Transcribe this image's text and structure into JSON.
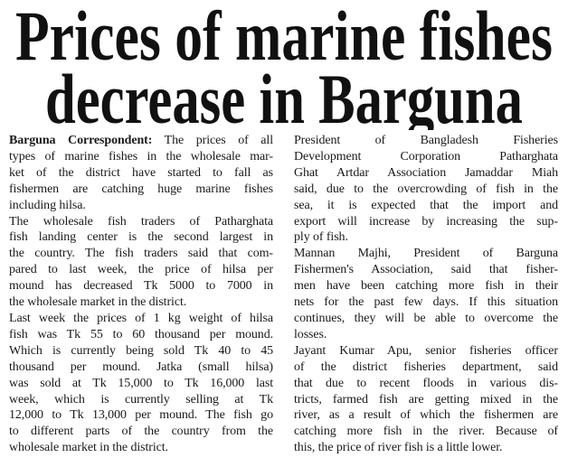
{
  "headline": [
    "Prices of marine fishes",
    "decrease in Barguna"
  ],
  "byline": "Barguna Correspondent:",
  "columns": [
    [
      [
        "The prices of all",
        "types of marine fishes in the wholesale mar-",
        "ket of the district have started to fall as",
        "fishermen are catching huge marine fishes",
        "including hilsa."
      ],
      [
        "The wholesale fish traders of Patharghata",
        "fish landing center is the second largest in",
        "the country. The fish traders said that com-",
        "pared to last week, the price of hilsa per",
        "mound has decreased Tk 5000 to 7000 in",
        "the wholesale market in the district."
      ],
      [
        "Last week the prices of 1 kg weight of hilsa",
        "fish was Tk 55 to 60 thousand per mound.",
        "Which is currently being sold Tk 40 to 45",
        "thousand per mound. Jatka (small hilsa)",
        "was sold at Tk 15,000 to Tk 16,000 last",
        "week, which is currently selling at Tk",
        "12,000 to Tk 13,000 per mound. The fish go",
        "to different parts of the country from the",
        "wholesale market in the district."
      ]
    ],
    [
      [
        "President of Bangladesh Fisheries",
        "Development Corporation Patharghata",
        "Ghat Artdar Association Jamaddar Miah",
        "said, due to the overcrowding of fish in the",
        "sea, it is expected that the import and",
        "export will increase by increasing the sup-",
        "ply of fish."
      ],
      [
        "Mannan Majhi, President of Barguna",
        "Fishermen's Association, said that fisher-",
        "men have been catching more fish in their",
        "nets for the past few days. If this situation",
        "continues, they will be able to overcome the",
        "losses."
      ],
      [
        "Jayant Kumar Apu, senior fisheries officer",
        "of the district fisheries department, said",
        "that due to recent floods in various dis-",
        "tricts, farmed fish are getting mixed in the",
        "river, as a result of which the fishermen are",
        "catching more fish in the river. Because of",
        "this, the price of river fish is a little lower."
      ]
    ]
  ]
}
